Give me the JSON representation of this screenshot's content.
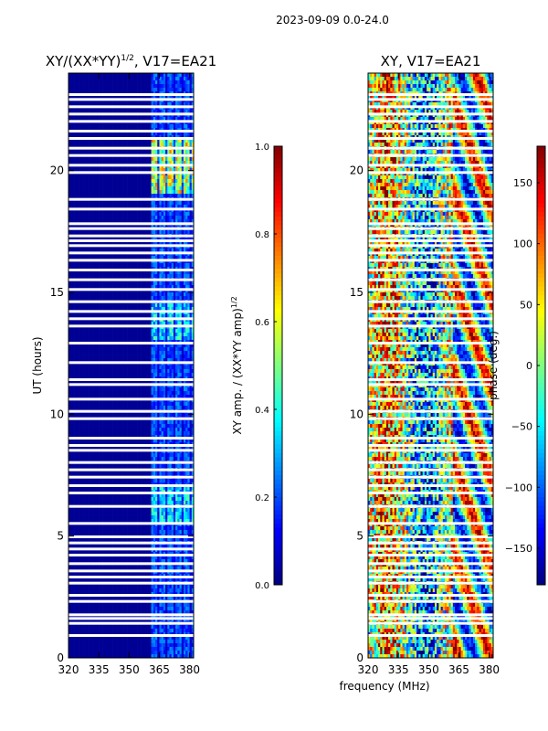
{
  "figure_title": "2023-09-09 0.0-24.0",
  "xlabel": "frequency (MHz)",
  "chart_data": [
    {
      "type": "heatmap",
      "title": "XY/(XX*YY)",
      "title_superscript": "1/2",
      "title_suffix": ", V17=EA21",
      "xlabel": "",
      "ylabel": "UT (hours)",
      "xlim": [
        320,
        382
      ],
      "ylim": [
        0,
        24
      ],
      "xticks": [
        320,
        335,
        350,
        365,
        380
      ],
      "yticks": [
        0,
        5,
        10,
        15,
        20
      ],
      "quantity": "amplitude",
      "colorbar": {
        "label": "XY amp. / (XX*YY amp)",
        "label_superscript": "1/2",
        "range": [
          0.0,
          1.0
        ],
        "ticks": [
          "0.0",
          "0.2",
          "0.4",
          "0.6",
          "0.8",
          "1.0"
        ],
        "colormap": "jet"
      }
    },
    {
      "type": "heatmap",
      "title": "XY, V17=EA21",
      "xlabel": "frequency (MHz)",
      "ylabel": "",
      "xlim": [
        320,
        382
      ],
      "ylim": [
        0,
        24
      ],
      "xticks": [
        320,
        335,
        350,
        365,
        380
      ],
      "yticks": [
        0,
        5,
        10,
        15,
        20
      ],
      "quantity": "phase",
      "colorbar": {
        "label": "phase (deg.)",
        "range": [
          -180,
          180
        ],
        "ticks": [
          "−150",
          "−100",
          "−50",
          "0",
          "50",
          "100",
          "150"
        ],
        "colormap": "jet"
      }
    }
  ]
}
